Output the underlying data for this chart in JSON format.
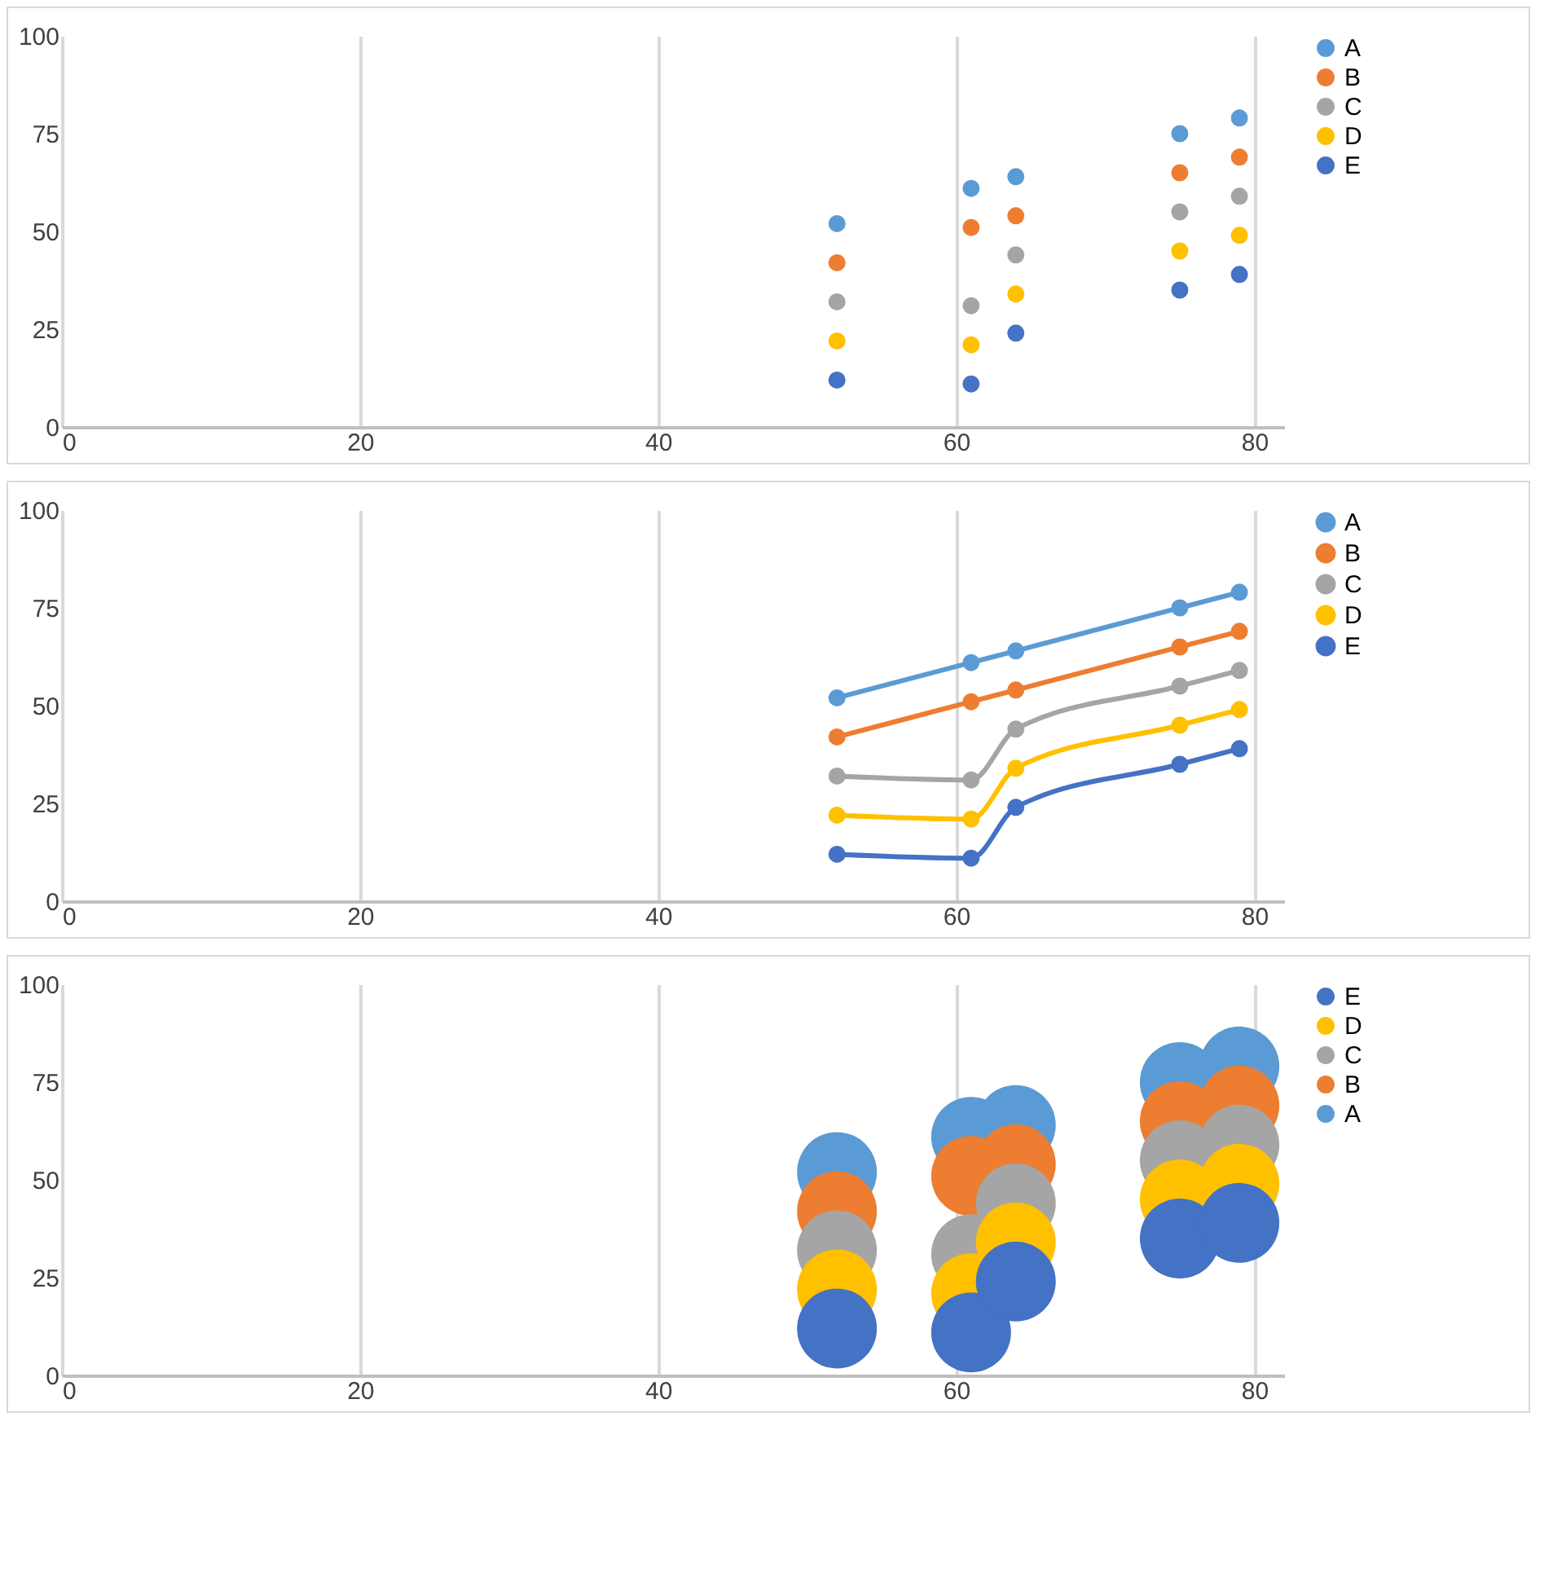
{
  "chart_data": [
    {
      "type": "scatter",
      "x": [
        52,
        61,
        64,
        75,
        79
      ],
      "xlim": [
        0,
        82
      ],
      "xticks": [
        0,
        20,
        40,
        60,
        80
      ],
      "ylim": [
        0,
        100
      ],
      "yticks": [
        0,
        25,
        50,
        75,
        100
      ],
      "grid": "x",
      "legend": "right",
      "marker": "circle",
      "series": [
        {
          "name": "A",
          "color": "#5b9bd5",
          "values": [
            52,
            61,
            64,
            75,
            79
          ]
        },
        {
          "name": "B",
          "color": "#ed7d31",
          "values": [
            42,
            51,
            54,
            65,
            69
          ]
        },
        {
          "name": "C",
          "color": "#a5a5a5",
          "values": [
            32,
            31,
            44,
            55,
            59
          ]
        },
        {
          "name": "D",
          "color": "#ffc000",
          "values": [
            22,
            21,
            34,
            45,
            49
          ]
        },
        {
          "name": "E",
          "color": "#4472c4",
          "values": [
            12,
            11,
            24,
            35,
            39
          ]
        }
      ]
    },
    {
      "type": "line",
      "x": [
        52,
        61,
        64,
        75,
        79
      ],
      "xlim": [
        0,
        82
      ],
      "xticks": [
        0,
        20,
        40,
        60,
        80
      ],
      "ylim": [
        0,
        100
      ],
      "yticks": [
        0,
        25,
        50,
        75,
        100
      ],
      "grid": "x",
      "legend": "right",
      "marker": "circle",
      "line_style": "solid",
      "series": [
        {
          "name": "A",
          "color": "#5b9bd5",
          "values": [
            52,
            61,
            64,
            75,
            79
          ]
        },
        {
          "name": "B",
          "color": "#ed7d31",
          "values": [
            42,
            51,
            54,
            65,
            69
          ]
        },
        {
          "name": "C",
          "color": "#a5a5a5",
          "values": [
            32,
            31,
            44,
            55,
            59
          ]
        },
        {
          "name": "D",
          "color": "#ffc000",
          "values": [
            22,
            21,
            34,
            45,
            49
          ]
        },
        {
          "name": "E",
          "color": "#4472c4",
          "values": [
            12,
            11,
            24,
            35,
            39
          ]
        }
      ]
    },
    {
      "type": "bubble",
      "x": [
        52,
        61,
        64,
        75,
        79
      ],
      "xlim": [
        0,
        82
      ],
      "xticks": [
        0,
        20,
        40,
        60,
        80
      ],
      "ylim": [
        0,
        100
      ],
      "yticks": [
        0,
        25,
        50,
        75,
        100
      ],
      "grid": "x",
      "legend": "right",
      "series": [
        {
          "name": "A",
          "color": "#5b9bd5",
          "values": [
            52,
            61,
            64,
            75,
            79
          ],
          "sizes": [
            1,
            1,
            1,
            1,
            1
          ]
        },
        {
          "name": "B",
          "color": "#ed7d31",
          "values": [
            42,
            51,
            54,
            65,
            69
          ],
          "sizes": [
            1,
            1,
            1,
            1,
            1
          ]
        },
        {
          "name": "C",
          "color": "#a5a5a5",
          "values": [
            32,
            31,
            44,
            55,
            59
          ],
          "sizes": [
            1,
            1,
            1,
            1,
            1
          ]
        },
        {
          "name": "D",
          "color": "#ffc000",
          "values": [
            22,
            21,
            34,
            45,
            49
          ],
          "sizes": [
            1,
            1,
            1,
            1,
            1
          ]
        },
        {
          "name": "E",
          "color": "#4472c4",
          "values": [
            12,
            11,
            24,
            35,
            39
          ],
          "sizes": [
            1,
            1,
            1,
            1,
            1
          ]
        }
      ]
    }
  ]
}
